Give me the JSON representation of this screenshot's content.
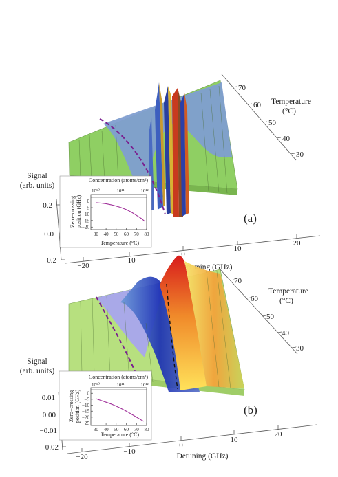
{
  "panels": [
    {
      "label": "(a)",
      "signal_label": [
        "Signal",
        "(arb. units)"
      ],
      "signal_ticks": [
        "0.2",
        "0.0",
        "−0.2"
      ],
      "detuning_label": "Detuning (GHz)",
      "detuning_ticks": [
        "−20",
        "−10",
        "0",
        "10",
        "20"
      ],
      "temperature_label": [
        "Temperature",
        "(°C)"
      ],
      "temperature_ticks": [
        "70",
        "60",
        "50",
        "40",
        "30"
      ],
      "inset": {
        "top_label": "Concentration (atoms/cm³)",
        "top_ticks": [
          "10¹⁰",
          "10¹¹",
          "10¹²"
        ],
        "ylabel": [
          "Zero−crossing",
          "position (GHz)"
        ],
        "yticks": [
          "0",
          "−5",
          "−10",
          "−15",
          "−20"
        ],
        "xlabel": "Temperature (°C)",
        "xticks": [
          "30",
          "40",
          "50",
          "60",
          "70",
          "80"
        ]
      }
    },
    {
      "label": "(b)",
      "signal_label": [
        "Signal",
        "(arb. units)"
      ],
      "signal_ticks": [
        "0.01",
        "0.00",
        "−0.01",
        "−0.02"
      ],
      "detuning_label": "Detuning (GHz)",
      "detuning_ticks": [
        "−20",
        "−10",
        "0",
        "10",
        "20"
      ],
      "temperature_label": [
        "Temperature",
        "(°C)"
      ],
      "temperature_ticks": [
        "70",
        "60",
        "50",
        "40",
        "30"
      ],
      "inset": {
        "top_label": "Concentration (atoms/cm³)",
        "top_ticks": [
          "10¹⁰",
          "10¹¹",
          "10¹²"
        ],
        "ylabel": [
          "Zero−crossing",
          "position (GHz)"
        ],
        "yticks": [
          "0",
          "−5",
          "−10",
          "−15",
          "−20",
          "−25"
        ],
        "xlabel": "Temperature (°C)",
        "xticks": [
          "30",
          "40",
          "50",
          "60",
          "70",
          "80"
        ]
      }
    }
  ],
  "chart_data": [
    {
      "type": "line",
      "panel": "(a) inset",
      "xlabel": "Temperature (°C)",
      "ylabel": "Zero−crossing position (GHz)",
      "xlim": [
        25,
        80
      ],
      "ylim": [
        -22,
        3
      ],
      "x": [
        30,
        35,
        40,
        45,
        50,
        55,
        60,
        65,
        70,
        75,
        78
      ],
      "series": [
        {
          "values": [
            -1.2,
            -1.5,
            -2.0,
            -2.8,
            -3.8,
            -5.0,
            -6.5,
            -8.5,
            -11.0,
            -13.5,
            -15.5
          ]
        }
      ],
      "color": "#a0309a"
    },
    {
      "type": "line",
      "panel": "(b) inset",
      "xlabel": "Temperature (°C)",
      "ylabel": "Zero−crossing position (GHz)",
      "xlim": [
        25,
        80
      ],
      "ylim": [
        -27,
        3
      ],
      "x": [
        30,
        35,
        40,
        45,
        50,
        55,
        60,
        65,
        70,
        75,
        77
      ],
      "series": [
        {
          "values": [
            -4.5,
            -6.0,
            -7.5,
            -9.0,
            -10.8,
            -12.8,
            -15.0,
            -17.5,
            -20.0,
            -22.5,
            -23.5
          ]
        }
      ],
      "color": "#a0309a"
    }
  ],
  "colors": {
    "green_surface": "#8fcf63",
    "blue_surface": "#7f9ed0",
    "dashed_purple": "#7a1f8f",
    "inset_curve": "#a0309a"
  }
}
